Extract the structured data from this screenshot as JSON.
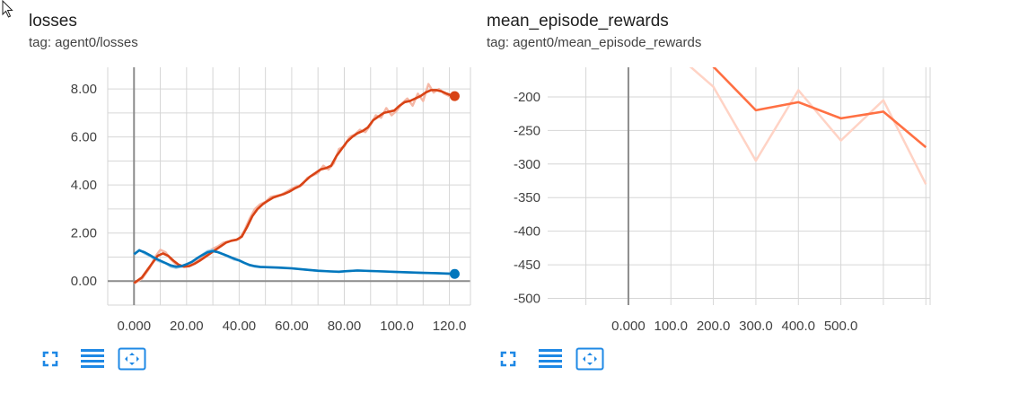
{
  "icons": {
    "cursor": "arrow-cursor-icon",
    "fullscreen": "fullscreen-icon",
    "lines": "list-lines-icon",
    "fit": "fit-domain-icon",
    "color": "#1e88e5"
  },
  "cards": [
    {
      "title": "losses",
      "tag": "tag: agent0/losses"
    },
    {
      "title": "mean_episode_rewards",
      "tag": "tag: agent0/mean_episode_rewards"
    }
  ],
  "chart_data": [
    {
      "type": "line",
      "title": "losses",
      "xlim": [
        -10,
        128
      ],
      "ylim": [
        -1.0,
        8.9
      ],
      "x_ticks": [
        0,
        20,
        40,
        60,
        80,
        100,
        120
      ],
      "x_tick_labels": [
        "0.000",
        "20.00",
        "40.00",
        "60.00",
        "80.00",
        "100.0",
        "120.0"
      ],
      "y_ticks": [
        0,
        2,
        4,
        6,
        8
      ],
      "y_tick_labels": [
        "0.00",
        "2.00",
        "4.00",
        "6.00",
        "8.00"
      ],
      "grid": true,
      "series": [
        {
          "color": "#d84315",
          "raw_color": "#f5b8a6",
          "end_marker": true,
          "raw": [
            [
              0,
              -0.1
            ],
            [
              3,
              0.1
            ],
            [
              6,
              0.55
            ],
            [
              8,
              1.0
            ],
            [
              10,
              1.3
            ],
            [
              12,
              1.2
            ],
            [
              14,
              0.9
            ],
            [
              16,
              0.7
            ],
            [
              18,
              0.6
            ],
            [
              20,
              0.62
            ],
            [
              22,
              0.7
            ],
            [
              24,
              0.85
            ],
            [
              26,
              1.0
            ],
            [
              28,
              1.2
            ],
            [
              30,
              1.35
            ],
            [
              32,
              1.45
            ],
            [
              34,
              1.6
            ],
            [
              36,
              1.65
            ],
            [
              38,
              1.7
            ],
            [
              40,
              1.75
            ],
            [
              42,
              2.1
            ],
            [
              44,
              2.6
            ],
            [
              46,
              3.0
            ],
            [
              48,
              3.2
            ],
            [
              50,
              3.3
            ],
            [
              52,
              3.5
            ],
            [
              54,
              3.55
            ],
            [
              56,
              3.6
            ],
            [
              58,
              3.72
            ],
            [
              60,
              3.85
            ],
            [
              62,
              3.95
            ],
            [
              64,
              4.0
            ],
            [
              66,
              4.3
            ],
            [
              68,
              4.4
            ],
            [
              70,
              4.5
            ],
            [
              72,
              4.8
            ],
            [
              74,
              4.65
            ],
            [
              76,
              4.9
            ],
            [
              78,
              5.5
            ],
            [
              80,
              5.6
            ],
            [
              82,
              6.0
            ],
            [
              84,
              6.1
            ],
            [
              86,
              6.3
            ],
            [
              88,
              6.2
            ],
            [
              90,
              6.5
            ],
            [
              92,
              6.9
            ],
            [
              94,
              6.8
            ],
            [
              96,
              7.2
            ],
            [
              98,
              6.9
            ],
            [
              100,
              7.1
            ],
            [
              102,
              7.4
            ],
            [
              104,
              7.6
            ],
            [
              106,
              7.3
            ],
            [
              108,
              7.8
            ],
            [
              110,
              7.5
            ],
            [
              112,
              8.2
            ],
            [
              114,
              7.85
            ],
            [
              116,
              8.0
            ],
            [
              118,
              7.8
            ],
            [
              120,
              7.7
            ],
            [
              122,
              7.7
            ]
          ],
          "smoothed": [
            [
              0,
              -0.08
            ],
            [
              3,
              0.15
            ],
            [
              6,
              0.6
            ],
            [
              9,
              1.05
            ],
            [
              11,
              1.15
            ],
            [
              13,
              1.05
            ],
            [
              15,
              0.85
            ],
            [
              17,
              0.68
            ],
            [
              19,
              0.6
            ],
            [
              21,
              0.62
            ],
            [
              23,
              0.72
            ],
            [
              25,
              0.85
            ],
            [
              27,
              1.0
            ],
            [
              29,
              1.15
            ],
            [
              31,
              1.3
            ],
            [
              33,
              1.45
            ],
            [
              35,
              1.6
            ],
            [
              37,
              1.68
            ],
            [
              39,
              1.72
            ],
            [
              41,
              1.85
            ],
            [
              43,
              2.25
            ],
            [
              45,
              2.7
            ],
            [
              47,
              3.0
            ],
            [
              49,
              3.2
            ],
            [
              51,
              3.35
            ],
            [
              53,
              3.48
            ],
            [
              55,
              3.55
            ],
            [
              57,
              3.62
            ],
            [
              59,
              3.72
            ],
            [
              61,
              3.85
            ],
            [
              63,
              3.95
            ],
            [
              65,
              4.15
            ],
            [
              67,
              4.35
            ],
            [
              69,
              4.5
            ],
            [
              71,
              4.65
            ],
            [
              73,
              4.7
            ],
            [
              75,
              4.8
            ],
            [
              77,
              5.2
            ],
            [
              79,
              5.5
            ],
            [
              81,
              5.8
            ],
            [
              83,
              6.0
            ],
            [
              85,
              6.15
            ],
            [
              87,
              6.25
            ],
            [
              89,
              6.4
            ],
            [
              91,
              6.7
            ],
            [
              93,
              6.85
            ],
            [
              95,
              7.0
            ],
            [
              97,
              7.05
            ],
            [
              99,
              7.1
            ],
            [
              101,
              7.3
            ],
            [
              103,
              7.45
            ],
            [
              105,
              7.5
            ],
            [
              107,
              7.6
            ],
            [
              109,
              7.7
            ],
            [
              111,
              7.85
            ],
            [
              113,
              7.95
            ],
            [
              115,
              7.95
            ],
            [
              117,
              7.9
            ],
            [
              119,
              7.8
            ],
            [
              121,
              7.72
            ],
            [
              122,
              7.7
            ]
          ]
        },
        {
          "color": "#0277bd",
          "raw_color": "#9fcbe7",
          "end_marker": true,
          "raw": [
            [
              0,
              1.1
            ],
            [
              2,
              1.3
            ],
            [
              4,
              1.15
            ],
            [
              6,
              1.05
            ],
            [
              8,
              0.9
            ],
            [
              10,
              0.8
            ],
            [
              12,
              0.75
            ],
            [
              14,
              0.6
            ],
            [
              16,
              0.55
            ],
            [
              18,
              0.6
            ],
            [
              20,
              0.7
            ],
            [
              22,
              0.8
            ],
            [
              24,
              0.95
            ],
            [
              26,
              1.1
            ],
            [
              28,
              1.25
            ],
            [
              30,
              1.3
            ],
            [
              32,
              1.2
            ],
            [
              34,
              1.1
            ],
            [
              36,
              1.0
            ],
            [
              38,
              0.9
            ],
            [
              40,
              0.85
            ],
            [
              42,
              0.75
            ],
            [
              44,
              0.65
            ],
            [
              46,
              0.6
            ],
            [
              48,
              0.58
            ],
            [
              50,
              0.58
            ],
            [
              55,
              0.55
            ],
            [
              60,
              0.52
            ],
            [
              65,
              0.48
            ],
            [
              70,
              0.42
            ],
            [
              75,
              0.4
            ],
            [
              78,
              0.38
            ],
            [
              80,
              0.4
            ],
            [
              85,
              0.45
            ],
            [
              90,
              0.42
            ],
            [
              95,
              0.4
            ],
            [
              100,
              0.38
            ],
            [
              105,
              0.36
            ],
            [
              110,
              0.34
            ],
            [
              115,
              0.33
            ],
            [
              120,
              0.3
            ],
            [
              122,
              0.3
            ]
          ],
          "smoothed": [
            [
              0,
              1.12
            ],
            [
              2,
              1.28
            ],
            [
              4,
              1.2
            ],
            [
              6,
              1.08
            ],
            [
              8,
              0.95
            ],
            [
              10,
              0.85
            ],
            [
              12,
              0.75
            ],
            [
              14,
              0.65
            ],
            [
              16,
              0.6
            ],
            [
              18,
              0.62
            ],
            [
              20,
              0.7
            ],
            [
              22,
              0.8
            ],
            [
              24,
              0.95
            ],
            [
              26,
              1.08
            ],
            [
              28,
              1.2
            ],
            [
              30,
              1.25
            ],
            [
              32,
              1.2
            ],
            [
              34,
              1.12
            ],
            [
              36,
              1.03
            ],
            [
              38,
              0.94
            ],
            [
              40,
              0.86
            ],
            [
              42,
              0.76
            ],
            [
              44,
              0.67
            ],
            [
              46,
              0.62
            ],
            [
              48,
              0.59
            ],
            [
              50,
              0.58
            ],
            [
              55,
              0.56
            ],
            [
              60,
              0.53
            ],
            [
              65,
              0.48
            ],
            [
              70,
              0.43
            ],
            [
              75,
              0.4
            ],
            [
              78,
              0.39
            ],
            [
              80,
              0.41
            ],
            [
              85,
              0.44
            ],
            [
              90,
              0.42
            ],
            [
              95,
              0.4
            ],
            [
              100,
              0.38
            ],
            [
              105,
              0.36
            ],
            [
              110,
              0.34
            ],
            [
              115,
              0.33
            ],
            [
              120,
              0.31
            ],
            [
              122,
              0.3
            ]
          ]
        }
      ]
    },
    {
      "type": "line",
      "title": "mean_episode_rewards",
      "xlim": [
        -190,
        710
      ],
      "ylim": [
        -510,
        -156
      ],
      "x_ticks": [
        0,
        100,
        200,
        300,
        400,
        500
      ],
      "x_tick_labels": [
        "0.000",
        "100.0",
        "200.0",
        "300.0",
        "400.0",
        "500.0"
      ],
      "y_ticks": [
        -200,
        -250,
        -300,
        -350,
        -400,
        -450,
        -500
      ],
      "y_tick_labels": [
        "-200",
        "-250",
        "-300",
        "-350",
        "-400",
        "-450",
        "-500"
      ],
      "grid": true,
      "series": [
        {
          "color": "#ff7043",
          "raw_color": "#ffd3c5",
          "end_marker": false,
          "raw": [
            [
              100,
              -130
            ],
            [
              200,
              -185
            ],
            [
              300,
              -295
            ],
            [
              400,
              -190
            ],
            [
              500,
              -265
            ],
            [
              600,
              -205
            ],
            [
              700,
              -330
            ]
          ],
          "smoothed": [
            [
              100,
              -110
            ],
            [
              200,
              -155
            ],
            [
              300,
              -220
            ],
            [
              400,
              -208
            ],
            [
              500,
              -232
            ],
            [
              600,
              -222
            ],
            [
              700,
              -275
            ]
          ]
        }
      ]
    }
  ]
}
